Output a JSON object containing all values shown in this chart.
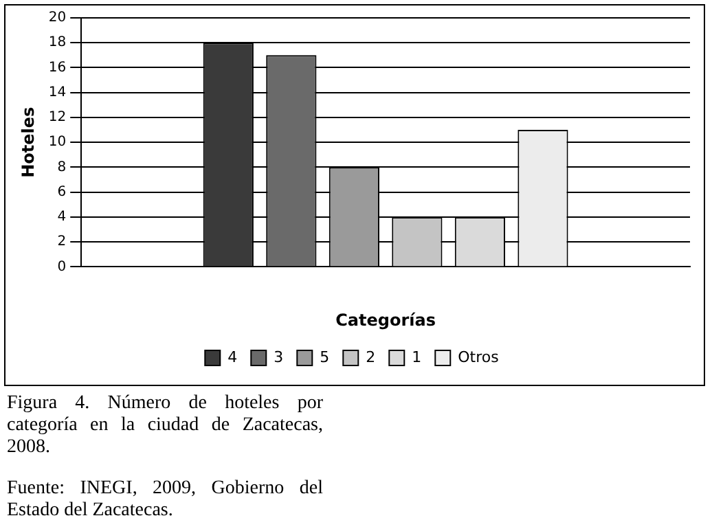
{
  "chart_data": {
    "type": "bar",
    "xlabel": "Categorías",
    "ylabel": "Hoteles",
    "categories": [
      null
    ],
    "series": [
      {
        "name": "4",
        "color": "#3a3a3a",
        "values": [
          18
        ]
      },
      {
        "name": "3",
        "color": "#6a6a6a",
        "values": [
          17
        ]
      },
      {
        "name": "5",
        "color": "#9a9a9a",
        "values": [
          8
        ]
      },
      {
        "name": "2",
        "color": "#c4c4c4",
        "values": [
          4
        ]
      },
      {
        "name": "1",
        "color": "#dadada",
        "values": [
          4
        ]
      },
      {
        "name": "Otros",
        "color": "#ececec",
        "values": [
          11
        ]
      }
    ],
    "ylim": [
      0,
      20
    ],
    "yticks": [
      0,
      2,
      4,
      6,
      8,
      10,
      12,
      14,
      16,
      18,
      20
    ],
    "grid": "y",
    "legend": "bottom",
    "annotations": [
      "Figura 4. Número de hoteles por categoría en la ciudad de Zacatecas, 2008.",
      "Fuente: INEGI, 2009, Gobierno del Estado del Zacatecas."
    ]
  }
}
